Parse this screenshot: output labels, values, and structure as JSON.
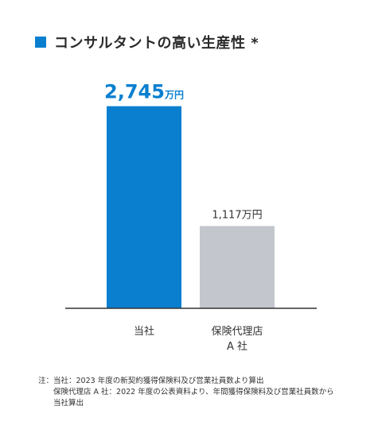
{
  "title": "コンサルタントの高い生産性 *",
  "colors": {
    "accent": "#0a7fd0",
    "compare": "#c4c6cd",
    "axis": "#333333"
  },
  "chart_data": {
    "type": "bar",
    "title": "コンサルタントの高い生産性 *",
    "categories": [
      [
        "当社"
      ],
      [
        "保険代理店",
        "A 社"
      ]
    ],
    "values": [
      2745,
      1117
    ],
    "value_labels": [
      {
        "number": "2,745",
        "unit": "万円"
      },
      {
        "number": "1,117",
        "unit": "万円"
      }
    ],
    "unit": "万円",
    "ylim": [
      0,
      3000
    ],
    "grid": false,
    "legend": "none"
  },
  "note": {
    "prefix": "注：",
    "lines": [
      "当社：2023 年度の新契約獲得保険料及び営業社員数より算出",
      "保険代理店 A 社：2022 年度の公表資料より、年間獲得保険料及び営業社員数から",
      "当社算出"
    ]
  }
}
